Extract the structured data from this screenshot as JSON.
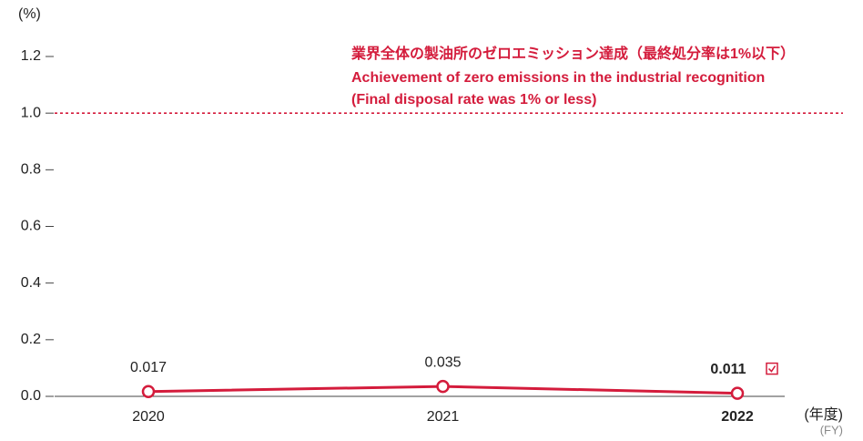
{
  "chart_data": {
    "type": "line",
    "y_label": "(%)",
    "x_label": [
      "(年度)",
      "(FY)"
    ],
    "annotations": [
      "業界全体の製油所のゼロエミッション達成（最終処分率は1%以下）",
      "Achievement of zero emissions in the industrial recognition",
      "(Final disposal rate was 1% or less)"
    ],
    "categories": [
      "2020",
      "2021",
      "2022"
    ],
    "series": [
      {
        "color": "#d41c3c",
        "values": [
          0.017,
          0.035,
          0.011
        ]
      }
    ],
    "reference_line": {
      "value": 1.0,
      "color": "#d41c3c"
    },
    "ylim": [
      0,
      1.2
    ],
    "yticks": [
      {
        "value": 0,
        "label": "0.0"
      },
      0.2,
      0.4,
      0.6,
      0.8,
      {
        "value": 1,
        "label": "1.0"
      },
      1.2
    ]
  }
}
